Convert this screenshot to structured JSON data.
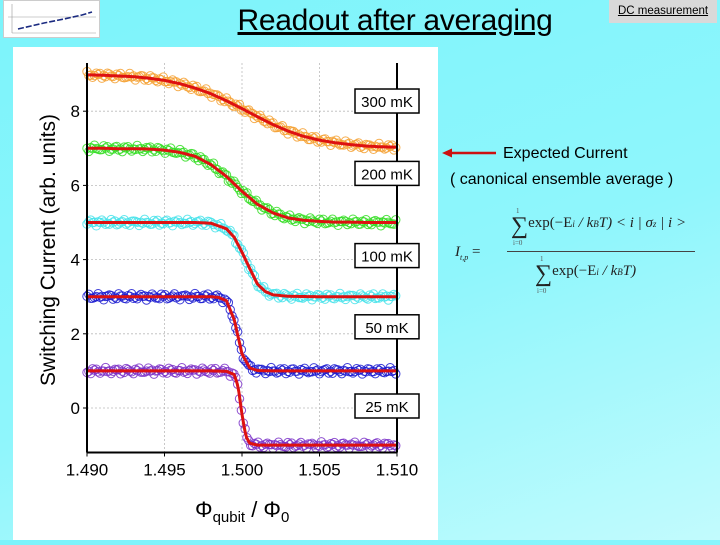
{
  "slide": {
    "title": "Readout after averaging",
    "dc_button": "DC measurement",
    "annotation": {
      "line1": "Expected Current",
      "line2": "( canonical ensemble average )",
      "arrow_color": "#cc1111"
    },
    "formula": {
      "lhs": "I",
      "lhs_sub": "t,p",
      "equals": "=",
      "sum_upper": "1",
      "sum_lower": "i=0",
      "numerator": "exp(−E",
      "num_i": "i",
      "num_rest": " / k",
      "num_b": "B",
      "num_tail": "T) < i | σ",
      "num_z": "z",
      "num_end": " | i >",
      "denominator": "exp(−E",
      "den_i": "i",
      "den_rest": " / k",
      "den_b": "B",
      "den_tail": "T)"
    }
  },
  "chart_data": {
    "type": "line",
    "title": "",
    "xlabel": "Φ",
    "xlabel_sub1": "qubit",
    "xlabel_sep": " / Φ",
    "xlabel_sub2": "0",
    "ylabel": "Switching Current (arb. units)",
    "xlim": [
      1.49,
      1.51
    ],
    "ylim": [
      -1.2,
      9.3
    ],
    "xticks": [
      "1.490",
      "1.495",
      "1.500",
      "1.505",
      "1.510"
    ],
    "yticks": [
      "0",
      "2",
      "4",
      "6",
      "8"
    ],
    "grid": true,
    "fit_color": "#dd1111",
    "series": [
      {
        "name": "300 mK",
        "color": "#f4a030",
        "x": [
          1.49,
          1.491,
          1.492,
          1.493,
          1.494,
          1.495,
          1.496,
          1.497,
          1.498,
          1.499,
          1.5,
          1.501,
          1.502,
          1.503,
          1.504,
          1.505,
          1.506,
          1.507,
          1.508,
          1.509,
          1.51
        ],
        "y": [
          8.98,
          8.97,
          8.95,
          8.93,
          8.89,
          8.83,
          8.74,
          8.62,
          8.47,
          8.28,
          8.07,
          7.85,
          7.64,
          7.46,
          7.32,
          7.22,
          7.15,
          7.1,
          7.06,
          7.04,
          7.03
        ]
      },
      {
        "name": "200 mK",
        "color": "#33dd22",
        "x": [
          1.49,
          1.491,
          1.492,
          1.493,
          1.494,
          1.495,
          1.496,
          1.497,
          1.498,
          1.499,
          1.5,
          1.501,
          1.502,
          1.503,
          1.504,
          1.505,
          1.506,
          1.507,
          1.508,
          1.509,
          1.51
        ],
        "y": [
          7.0,
          7.0,
          6.99,
          6.99,
          6.98,
          6.95,
          6.89,
          6.78,
          6.56,
          6.24,
          5.84,
          5.49,
          5.26,
          5.12,
          5.06,
          5.03,
          5.01,
          5.01,
          5.0,
          5.0,
          5.0
        ]
      },
      {
        "name": "100 mK",
        "color": "#44e2ea",
        "x": [
          1.49,
          1.493,
          1.496,
          1.497,
          1.498,
          1.499,
          1.4995,
          1.5,
          1.5005,
          1.501,
          1.5015,
          1.502,
          1.503,
          1.505,
          1.51
        ],
        "y": [
          5.0,
          5.0,
          5.0,
          5.0,
          4.98,
          4.83,
          4.6,
          4.2,
          3.76,
          3.34,
          3.14,
          3.05,
          3.01,
          3.0,
          3.0
        ]
      },
      {
        "name": "50 mK",
        "color": "#1a1ad0",
        "x": [
          1.49,
          1.494,
          1.497,
          1.498,
          1.4985,
          1.499,
          1.4995,
          1.5,
          1.5005,
          1.501,
          1.502,
          1.505,
          1.51
        ],
        "y": [
          3.0,
          3.0,
          3.0,
          3.0,
          2.98,
          2.89,
          2.38,
          1.46,
          1.08,
          1.01,
          1.0,
          1.0,
          1.0
        ]
      },
      {
        "name": "25 mK",
        "color": "#7a30c8",
        "x": [
          1.49,
          1.494,
          1.498,
          1.499,
          1.4995,
          1.49975,
          1.5,
          1.50025,
          1.5005,
          1.501,
          1.502,
          1.505,
          1.51
        ],
        "y": [
          1.0,
          1.0,
          1.0,
          0.99,
          0.9,
          0.58,
          -0.17,
          -0.76,
          -0.95,
          -1.0,
          -1.0,
          -1.0,
          -1.0
        ]
      }
    ]
  }
}
